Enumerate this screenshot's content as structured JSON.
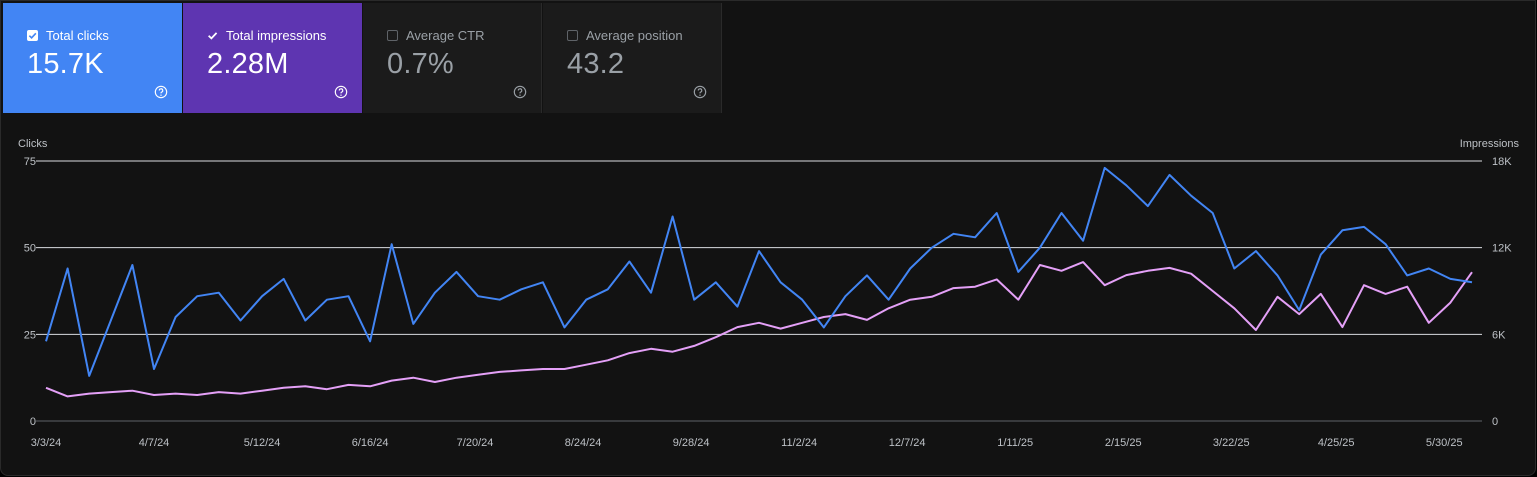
{
  "cards": [
    {
      "label": "Total clicks",
      "value": "15.7K",
      "checked": true
    },
    {
      "label": "Total impressions",
      "value": "2.28M",
      "checked": true
    },
    {
      "label": "Average CTR",
      "value": "0.7%",
      "checked": false
    },
    {
      "label": "Average position",
      "value": "43.2",
      "checked": false
    }
  ],
  "colors": {
    "clicks": "#4285f4",
    "impressions": "#e4a0f7",
    "clicks_card": "#4285f4",
    "impressions_card": "#5e35b1"
  },
  "icons": {
    "checkbox": "check-icon",
    "help": "help-circle-icon"
  },
  "chart_data": {
    "type": "line",
    "ylabel_left": "Clicks",
    "ylabel_right": "Impressions",
    "y_left": {
      "lim": [
        0,
        75
      ],
      "ticks": [
        "0",
        "25",
        "50",
        "75"
      ],
      "values": [
        0,
        25,
        50,
        75
      ]
    },
    "y_right": {
      "lim": [
        0,
        18000
      ],
      "ticks": [
        "0",
        "6K",
        "12K",
        "18K"
      ],
      "values": [
        0,
        6000,
        12000,
        18000
      ]
    },
    "x_ticks": [
      "3/3/24",
      "4/7/24",
      "5/12/24",
      "6/16/24",
      "7/20/24",
      "8/24/24",
      "9/28/24",
      "11/2/24",
      "12/7/24",
      "1/11/25",
      "2/15/25",
      "3/22/25",
      "4/25/25",
      "5/30/25"
    ],
    "x_start": "2024-03-03",
    "grid": true,
    "series": [
      {
        "name": "Clicks",
        "axis": "left",
        "every_n_days": 7,
        "values": [
          23,
          44,
          13,
          29,
          45,
          15,
          30,
          36,
          37,
          29,
          36,
          41,
          29,
          35,
          36,
          23,
          51,
          28,
          37,
          43,
          36,
          35,
          38,
          40,
          27,
          35,
          38,
          46,
          37,
          59,
          35,
          40,
          33,
          49,
          40,
          35,
          27,
          36,
          42,
          35,
          44,
          50,
          54,
          53,
          60,
          43,
          50,
          60,
          52,
          73,
          68,
          62,
          71,
          65,
          60,
          44,
          49,
          42,
          32,
          48,
          55,
          56,
          51,
          42,
          44,
          41,
          40
        ]
      },
      {
        "name": "Impressions",
        "axis": "right",
        "every_n_days": 7,
        "values": [
          2300,
          1700,
          1900,
          2000,
          2100,
          1800,
          1900,
          1800,
          2000,
          1900,
          2100,
          2300,
          2400,
          2200,
          2500,
          2400,
          2800,
          3000,
          2700,
          3000,
          3200,
          3400,
          3500,
          3600,
          3600,
          3900,
          4200,
          4700,
          5000,
          4800,
          5200,
          5800,
          6500,
          6800,
          6400,
          6800,
          7200,
          7400,
          7000,
          7800,
          8400,
          8600,
          9200,
          9300,
          9800,
          8400,
          10800,
          10400,
          11000,
          9400,
          10100,
          10400,
          10600,
          10200,
          9000,
          7800,
          6300,
          8600,
          7400,
          8800,
          6500,
          9400,
          8800,
          9300,
          6800,
          8200,
          10300
        ]
      }
    ]
  }
}
